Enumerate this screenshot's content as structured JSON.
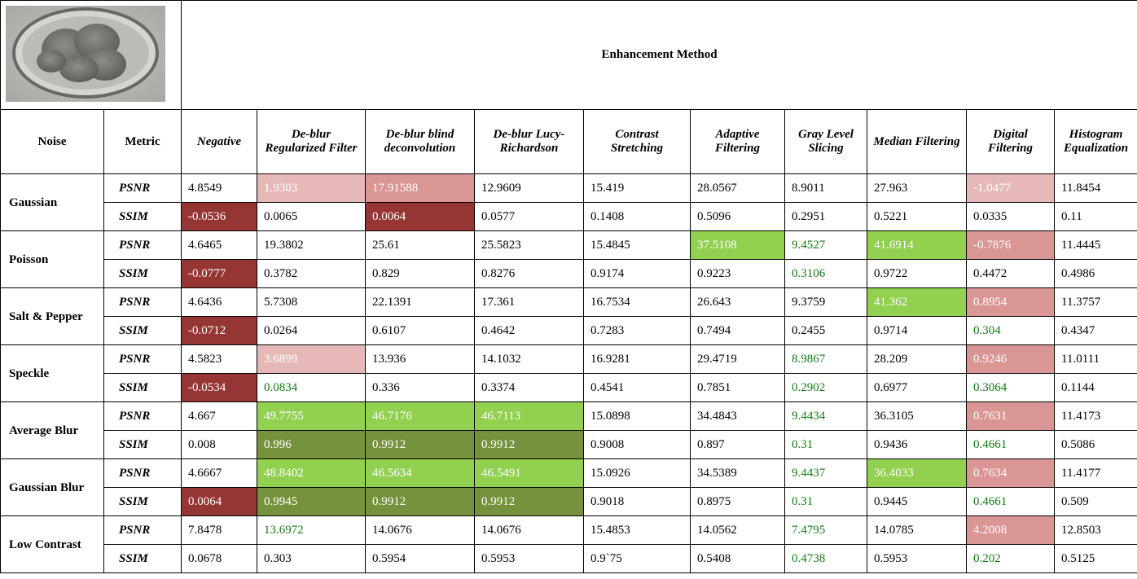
{
  "header": {
    "title": "Enhancement Method",
    "noise": "Noise",
    "metric": "Metric",
    "methods": [
      "Negative",
      "De-blur Regularized Filter",
      "De-blur blind deconvolution",
      "De-blur Lucy-Richardson",
      "Contrast Stretching",
      "Adaptive Filtering",
      "Gray Level Slicing",
      "Median Filtering",
      "Digital Filtering",
      "Histogram Equalization"
    ]
  },
  "rows": [
    {
      "noise": "Gaussian",
      "metrics": [
        {
          "metric": "PSNR",
          "values": [
            4.8549,
            1.9303,
            17.91588,
            12.9609,
            15.419,
            28.0567,
            8.9011,
            27.963,
            -1.0477,
            11.8454
          ]
        },
        {
          "metric": "SSIM",
          "values": [
            -0.0536,
            0.0065,
            0.0064,
            0.0577,
            0.1408,
            0.5096,
            0.2951,
            0.5221,
            0.0335,
            0.11
          ]
        }
      ]
    },
    {
      "noise": "Poisson",
      "metrics": [
        {
          "metric": "PSNR",
          "values": [
            4.6465,
            19.3802,
            25.61,
            25.5823,
            15.4845,
            37.5108,
            9.4527,
            41.6914,
            -0.7876,
            11.4445
          ]
        },
        {
          "metric": "SSIM",
          "values": [
            -0.0777,
            0.3782,
            0.829,
            0.8276,
            0.9174,
            0.9223,
            0.3106,
            0.9722,
            0.4472,
            0.4986
          ]
        }
      ]
    },
    {
      "noise": "Salt & Pepper",
      "metrics": [
        {
          "metric": "PSNR",
          "values": [
            4.6436,
            5.7308,
            22.1391,
            17.361,
            16.7534,
            26.643,
            9.3759,
            41.362,
            0.8954,
            11.3757
          ]
        },
        {
          "metric": "SSIM",
          "values": [
            -0.0712,
            0.0264,
            0.6107,
            0.4642,
            0.7283,
            0.7494,
            0.2455,
            0.9714,
            0.304,
            0.4347
          ]
        }
      ]
    },
    {
      "noise": "Speckle",
      "metrics": [
        {
          "metric": "PSNR",
          "values": [
            4.5823,
            3.6899,
            13.936,
            14.1032,
            16.9281,
            29.4719,
            8.9867,
            28.209,
            0.9246,
            11.0111
          ]
        },
        {
          "metric": "SSIM",
          "values": [
            -0.0534,
            0.0834,
            0.336,
            0.3374,
            0.4541,
            0.7851,
            0.2902,
            0.6977,
            0.3064,
            0.1144
          ]
        }
      ]
    },
    {
      "noise": "Average Blur",
      "metrics": [
        {
          "metric": "PSNR",
          "values": [
            4.667,
            49.7755,
            46.7176,
            46.7113,
            15.0898,
            34.4843,
            9.4434,
            36.3105,
            0.7631,
            11.4173
          ]
        },
        {
          "metric": "SSIM",
          "values": [
            0.008,
            0.996,
            0.9912,
            0.9912,
            0.9008,
            0.897,
            0.31,
            0.9436,
            0.4661,
            0.5086
          ]
        }
      ]
    },
    {
      "noise": "Gaussian Blur",
      "metrics": [
        {
          "metric": "PSNR",
          "values": [
            4.6667,
            48.8402,
            46.5634,
            46.5491,
            15.0926,
            34.5389,
            9.4437,
            36.4033,
            0.7634,
            11.4177
          ]
        },
        {
          "metric": "SSIM",
          "values": [
            0.0064,
            0.9945,
            0.9912,
            0.9912,
            0.9018,
            0.8975,
            0.31,
            0.9445,
            0.4661,
            0.509
          ]
        }
      ]
    },
    {
      "noise": "Low Contrast",
      "metrics": [
        {
          "metric": "PSNR",
          "values": [
            7.8478,
            13.6972,
            14.0676,
            14.0676,
            15.4853,
            14.0562,
            7.4795,
            14.0785,
            4.2008,
            12.8503
          ]
        },
        {
          "metric": "SSIM",
          "values": [
            0.0678,
            0.303,
            0.5954,
            0.5953,
            "0.9`75",
            0.5408,
            0.4738,
            0.5953,
            0.202,
            0.5125
          ]
        }
      ]
    }
  ]
}
